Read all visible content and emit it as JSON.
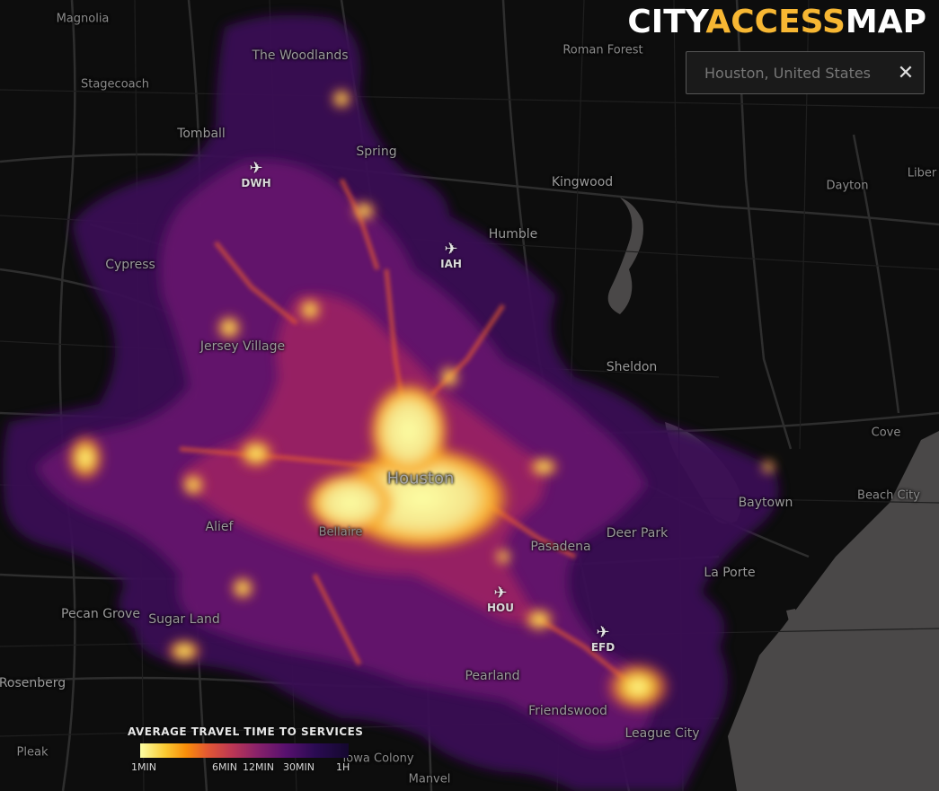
{
  "brand": {
    "part1": "CITY",
    "part2": "ACCESS",
    "part3": "MAP"
  },
  "search": {
    "placeholder": "Houston, United States",
    "value": "",
    "close_label": "✕"
  },
  "legend": {
    "title": "AVERAGE TRAVEL TIME TO SERVICES",
    "ticks": [
      "1MIN",
      "6MIN",
      "12MIN",
      "30MIN",
      "1H"
    ]
  },
  "places": [
    {
      "name": "Magnolia",
      "type": "town"
    },
    {
      "name": "The Woodlands",
      "type": "town"
    },
    {
      "name": "Roman Forest",
      "type": "town"
    },
    {
      "name": "Stagecoach",
      "type": "town"
    },
    {
      "name": "Tomball",
      "type": "town"
    },
    {
      "name": "Spring",
      "type": "town"
    },
    {
      "name": "Kingwood",
      "type": "town"
    },
    {
      "name": "Dayton",
      "type": "town"
    },
    {
      "name": "Liber",
      "type": "town"
    },
    {
      "name": "Humble",
      "type": "town"
    },
    {
      "name": "Cypress",
      "type": "town"
    },
    {
      "name": "Jersey Village",
      "type": "town"
    },
    {
      "name": "Sheldon",
      "type": "town"
    },
    {
      "name": "Cove",
      "type": "town"
    },
    {
      "name": "Houston",
      "type": "city"
    },
    {
      "name": "Baytown",
      "type": "town"
    },
    {
      "name": "Beach City",
      "type": "town"
    },
    {
      "name": "Alief",
      "type": "town"
    },
    {
      "name": "Bellaire",
      "type": "town"
    },
    {
      "name": "Deer Park",
      "type": "town"
    },
    {
      "name": "Pasadena",
      "type": "town"
    },
    {
      "name": "La Porte",
      "type": "town"
    },
    {
      "name": "Pecan Grove",
      "type": "town"
    },
    {
      "name": "Sugar Land",
      "type": "town"
    },
    {
      "name": "Pearland",
      "type": "town"
    },
    {
      "name": "Rosenberg",
      "type": "town"
    },
    {
      "name": "Friendswood",
      "type": "town"
    },
    {
      "name": "League City",
      "type": "town"
    },
    {
      "name": "Pleak",
      "type": "town"
    },
    {
      "name": "Iowa Colony",
      "type": "town"
    },
    {
      "name": "Manvel",
      "type": "town"
    }
  ],
  "airports": [
    {
      "code": "DWH"
    },
    {
      "code": "IAH"
    },
    {
      "code": "HOU"
    },
    {
      "code": "EFD"
    }
  ],
  "colors": {
    "background": "#0d0d0d",
    "water": "#4a4848",
    "roads": "#2b2b2b",
    "accent": "#f7b733"
  }
}
